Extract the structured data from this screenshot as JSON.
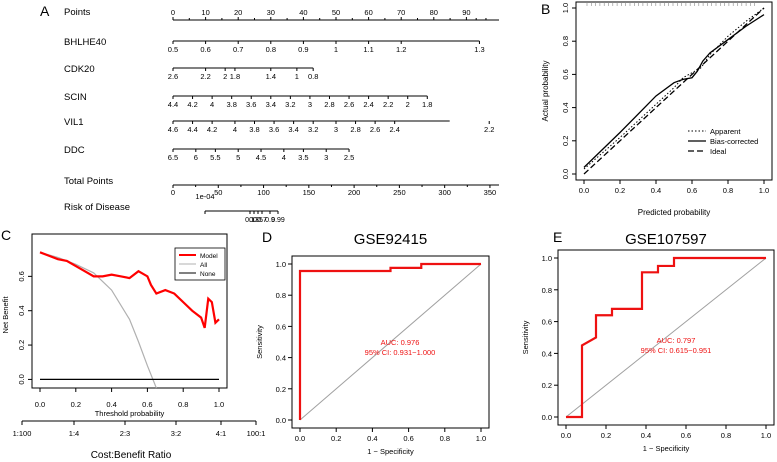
{
  "chart_data": [
    {
      "panel": "A",
      "type": "nomogram",
      "scales": [
        {
          "name": "Points",
          "labels": [
            "0",
            "10",
            "20",
            "30",
            "40",
            "50",
            "60",
            "70",
            "80",
            "90"
          ],
          "values": [
            0,
            10,
            20,
            30,
            40,
            50,
            60,
            70,
            80,
            90
          ],
          "minor": [
            5,
            15,
            25,
            35,
            45,
            55,
            65,
            75,
            85
          ],
          "max": 100
        },
        {
          "name": "BHLHE40",
          "labels": [
            "0.5",
            "0.6",
            "0.7",
            "0.8",
            "0.9",
            "1",
            "1.1",
            "1.2",
            "1.3"
          ],
          "points": [
            0,
            10,
            20,
            30,
            40,
            50,
            60,
            70,
            94
          ]
        },
        {
          "name": "CDK20",
          "labels": [
            "2.6",
            "2.2",
            "2",
            "1.8",
            "1.4",
            "1",
            "0.8"
          ],
          "points": [
            0,
            10,
            16,
            19,
            30,
            38,
            43
          ]
        },
        {
          "name": "SCIN",
          "labels": [
            "4.4",
            "4.2",
            "4",
            "3.8",
            "3.6",
            "3.4",
            "3.2",
            "3",
            "2.8",
            "2.6",
            "2.4",
            "2.2",
            "2",
            "1.8"
          ],
          "points": [
            0,
            6,
            12,
            18,
            24,
            30,
            36,
            42,
            48,
            54,
            60,
            66,
            72,
            78
          ]
        },
        {
          "name": "VIL1",
          "labels": [
            "4.6",
            "4.4",
            "4.2",
            "4",
            "3.8",
            "3.6",
            "3.4",
            "3.2",
            "3",
            "2.8",
            "2.6",
            "2.4",
            "2.2"
          ],
          "points": [
            0,
            6,
            12,
            19,
            25,
            31,
            37,
            43,
            50,
            56,
            62,
            68,
            97
          ]
        },
        {
          "name": "DDC",
          "labels": [
            "6.5",
            "6",
            "5.5",
            "5",
            "4.5",
            "4",
            "3.5",
            "3",
            "2.5"
          ],
          "points": [
            0,
            7,
            13,
            20,
            27,
            34,
            40,
            47,
            54
          ]
        },
        {
          "name": "Total Points",
          "labels": [
            "0",
            "50",
            "100",
            "150",
            "200",
            "250",
            "300",
            "350"
          ],
          "values": [
            0,
            50,
            100,
            150,
            200,
            250,
            300,
            350
          ],
          "max": 360
        },
        {
          "name": "Risk of Disease",
          "labels": [
            "1e-04",
            "0.1",
            "0.3",
            "0.5",
            "0.7",
            "0.9",
            "0.99"
          ]
        }
      ]
    },
    {
      "panel": "B",
      "type": "line",
      "title": "",
      "xlabel": "Predicted probability",
      "ylabel": "Actual probability",
      "xlim": [
        0,
        1
      ],
      "ylim": [
        0,
        1
      ],
      "xticks": [
        "0.0",
        "0.2",
        "0.4",
        "0.6",
        "0.8",
        "1.0"
      ],
      "yticks": [
        "0.0",
        "0.2",
        "0.4",
        "0.6",
        "0.8",
        "1.0"
      ],
      "series": [
        {
          "name": "Apparent",
          "style": "dotted",
          "x": [
            0.0,
            0.2,
            0.4,
            0.5,
            0.55,
            0.6,
            0.65,
            0.7,
            0.8,
            0.9,
            1.0
          ],
          "y": [
            0.03,
            0.22,
            0.42,
            0.52,
            0.58,
            0.61,
            0.64,
            0.72,
            0.83,
            0.92,
            1.0
          ]
        },
        {
          "name": "Bias-corrected",
          "style": "solid",
          "x": [
            0.0,
            0.2,
            0.4,
            0.5,
            0.55,
            0.6,
            0.63,
            0.66,
            0.7,
            0.8,
            0.9,
            1.0
          ],
          "y": [
            0.04,
            0.25,
            0.47,
            0.55,
            0.57,
            0.58,
            0.62,
            0.68,
            0.73,
            0.81,
            0.89,
            0.96
          ]
        },
        {
          "name": "Ideal",
          "style": "dashed",
          "x": [
            0,
            1
          ],
          "y": [
            0,
            1
          ]
        }
      ]
    },
    {
      "panel": "C",
      "type": "line",
      "xlabel": "Threshold probability",
      "ylabel": "Net Benefit",
      "x2label": "Cost:Benefit Ratio",
      "xlim": [
        0,
        1
      ],
      "ylim": [
        -0.05,
        0.8
      ],
      "xticks": [
        "0.0",
        "0.2",
        "0.4",
        "0.6",
        "0.8",
        "1.0"
      ],
      "yticks": [
        "0.0",
        "0.2",
        "0.4",
        "0.6"
      ],
      "x2ticks": [
        "1:100",
        "1:4",
        "2:3",
        "3:2",
        "4:1",
        "100:1"
      ],
      "series": [
        {
          "name": "Model",
          "color": "#ff0000",
          "x": [
            0.0,
            0.05,
            0.1,
            0.15,
            0.2,
            0.25,
            0.3,
            0.35,
            0.4,
            0.45,
            0.5,
            0.55,
            0.6,
            0.62,
            0.65,
            0.7,
            0.75,
            0.8,
            0.85,
            0.9,
            0.92,
            0.94,
            0.96,
            0.98,
            1.0
          ],
          "y": [
            0.74,
            0.72,
            0.7,
            0.69,
            0.66,
            0.63,
            0.6,
            0.6,
            0.61,
            0.6,
            0.59,
            0.63,
            0.6,
            0.55,
            0.5,
            0.52,
            0.5,
            0.45,
            0.4,
            0.36,
            0.3,
            0.47,
            0.45,
            0.33,
            0.35
          ]
        },
        {
          "name": "All",
          "color": "#b0b0b0",
          "x": [
            0.0,
            0.1,
            0.2,
            0.3,
            0.4,
            0.5,
            0.55,
            0.6,
            0.65
          ],
          "y": [
            0.74,
            0.71,
            0.67,
            0.62,
            0.52,
            0.35,
            0.22,
            0.08,
            -0.05
          ]
        },
        {
          "name": "None",
          "color": "#000000",
          "x": [
            0,
            1
          ],
          "y": [
            0,
            0
          ]
        }
      ]
    },
    {
      "panel": "D",
      "type": "line",
      "title": "GSE92415",
      "xlabel": "1 − Specificity",
      "ylabel": "Sensitivity",
      "xlim": [
        0,
        1
      ],
      "ylim": [
        0,
        1
      ],
      "xticks": [
        "0.0",
        "0.2",
        "0.4",
        "0.6",
        "0.8",
        "1.0"
      ],
      "yticks": [
        "0.0",
        "0.2",
        "0.4",
        "0.6",
        "0.8",
        "1.0"
      ],
      "annotation": [
        "AUC: 0.976",
        "95% CI: 0.931−1.000"
      ],
      "series": [
        {
          "name": "ROC",
          "color": "#ee1111",
          "x": [
            0,
            0,
            0.5,
            0.5,
            0.67,
            0.67,
            1
          ],
          "y": [
            0,
            0.955,
            0.955,
            0.975,
            0.975,
            1,
            1
          ]
        },
        {
          "name": "Reference",
          "color": "#a0a0a0",
          "x": [
            0,
            1
          ],
          "y": [
            0,
            1
          ]
        }
      ]
    },
    {
      "panel": "E",
      "type": "line",
      "title": "GSE107597",
      "xlabel": "1 − Specificity",
      "ylabel": "Sensitivity",
      "xlim": [
        0,
        1
      ],
      "ylim": [
        0,
        1
      ],
      "xticks": [
        "0.0",
        "0.2",
        "0.4",
        "0.6",
        "0.8",
        "1.0"
      ],
      "yticks": [
        "0.0",
        "0.2",
        "0.4",
        "0.6",
        "0.8",
        "1.0"
      ],
      "annotation": [
        "AUC: 0.797",
        "95% CI: 0.615−0.951"
      ],
      "series": [
        {
          "name": "ROC",
          "color": "#ee1111",
          "x": [
            0,
            0.08,
            0.08,
            0.15,
            0.15,
            0.23,
            0.23,
            0.38,
            0.38,
            0.46,
            0.46,
            0.54,
            0.54,
            1
          ],
          "y": [
            0,
            0,
            0.45,
            0.5,
            0.64,
            0.64,
            0.68,
            0.68,
            0.91,
            0.91,
            0.95,
            0.95,
            1,
            1
          ]
        },
        {
          "name": "Reference",
          "color": "#a0a0a0",
          "x": [
            0,
            1
          ],
          "y": [
            0,
            1
          ]
        }
      ]
    }
  ],
  "panel_labels": [
    "A",
    "B",
    "C",
    "D",
    "E"
  ]
}
